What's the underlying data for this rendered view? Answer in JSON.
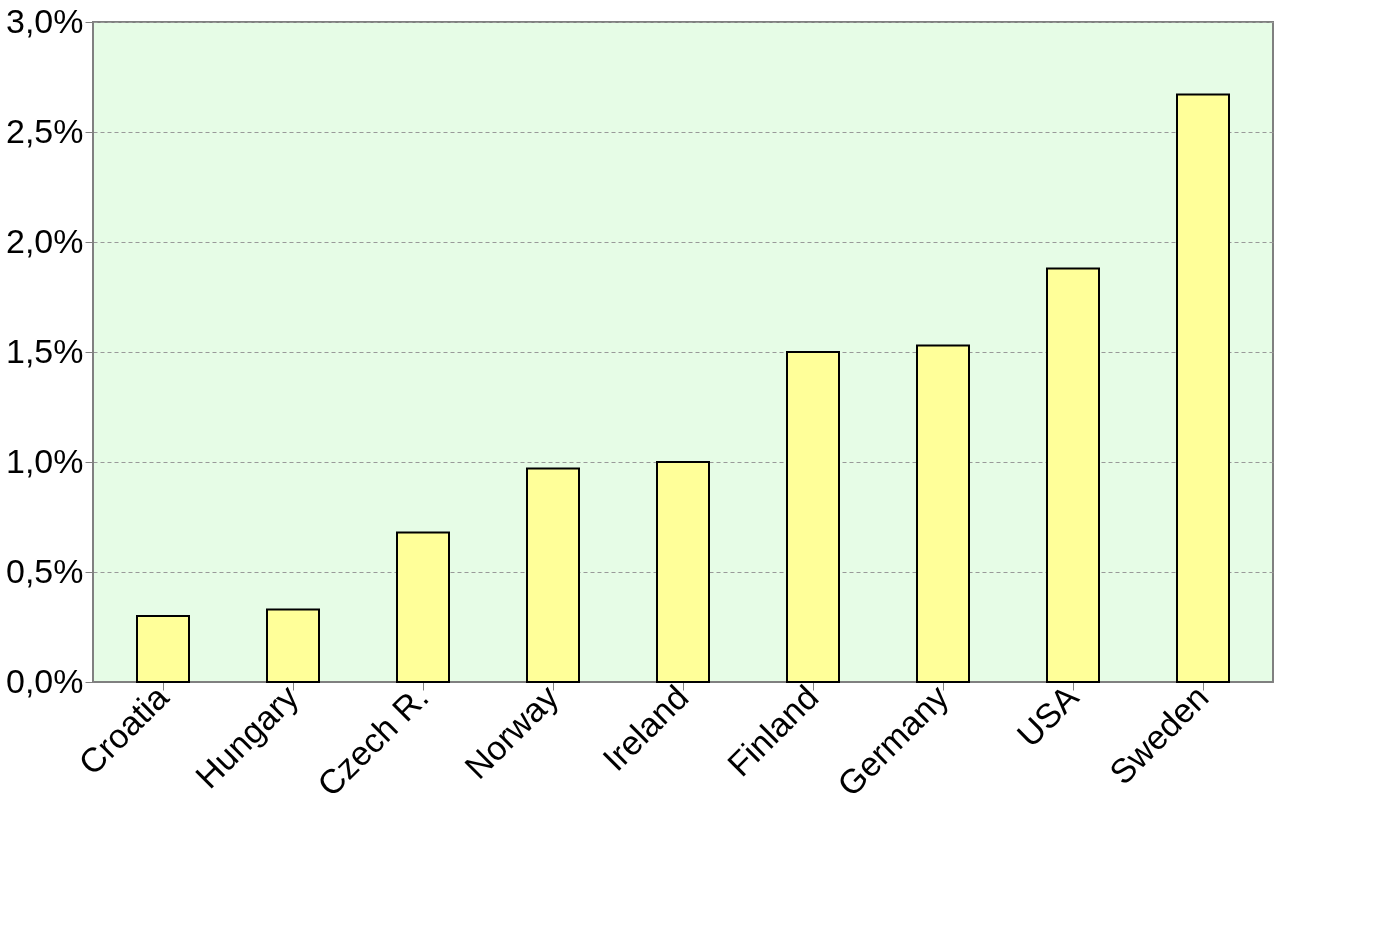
{
  "chart_data": {
    "type": "bar",
    "categories": [
      "Croatia",
      "Hungary",
      "Czech R.",
      "Norway",
      "Ireland",
      "Finland",
      "Germany",
      "USA",
      "Sweden"
    ],
    "values": [
      0.3,
      0.33,
      0.68,
      0.97,
      1.0,
      1.5,
      1.53,
      1.88,
      2.67
    ],
    "color": "#ffff99",
    "ylim": [
      0,
      3
    ],
    "yticks": [
      {
        "value": 0,
        "label": "0,0%"
      },
      {
        "value": 0.5,
        "label": "0,5%"
      },
      {
        "value": 1,
        "label": "1,0%"
      },
      {
        "value": 1.5,
        "label": "1,5%"
      },
      {
        "value": 2,
        "label": "2,0%"
      },
      {
        "value": 2.5,
        "label": "2,5%"
      },
      {
        "value": 3,
        "label": "3,0%"
      }
    ],
    "grid": "y"
  }
}
